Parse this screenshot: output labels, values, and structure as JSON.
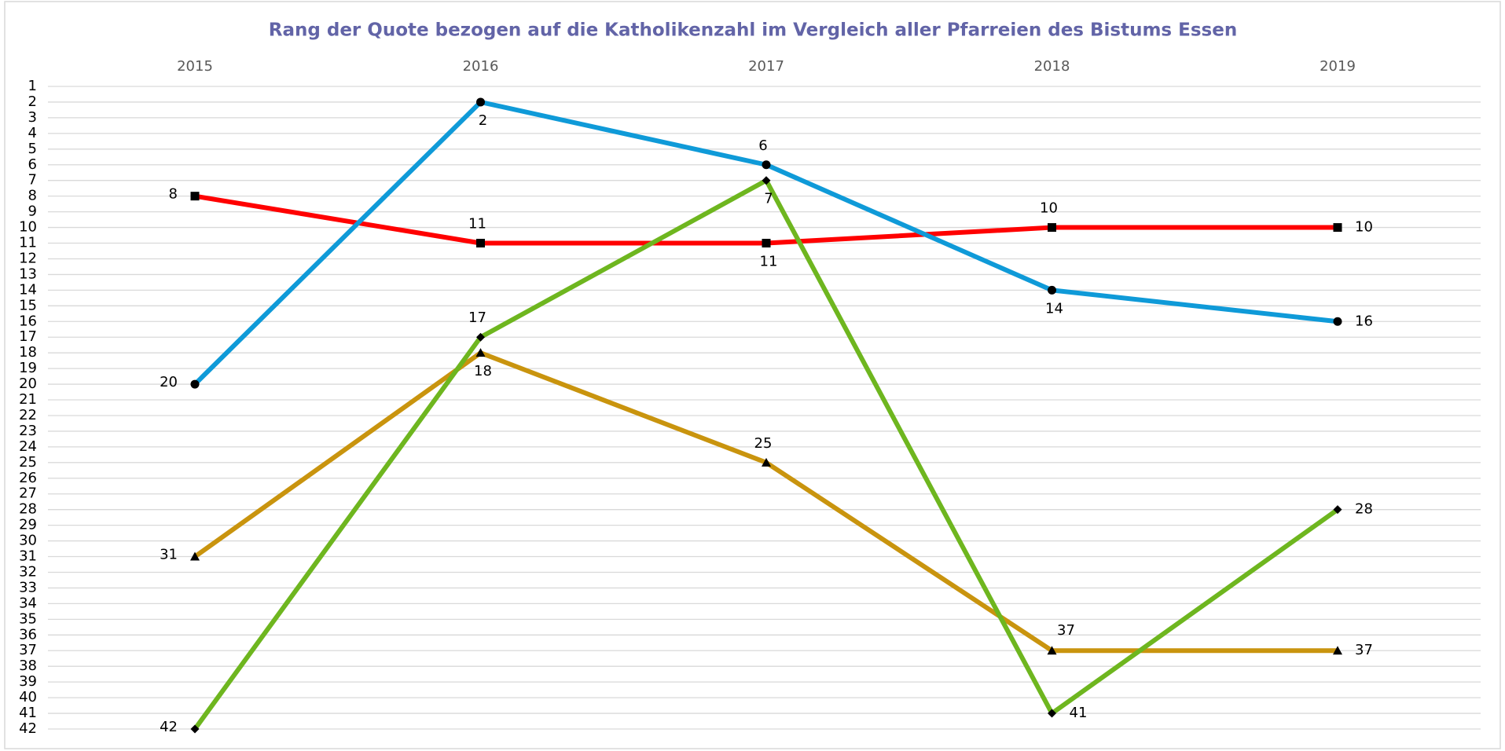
{
  "chart_data": {
    "type": "line",
    "title": "Rang der Quote bezogen auf die Katholikenzahl im Vergleich aller Pfarreien des Bistums Essen",
    "categories": [
      "2015",
      "2016",
      "2017",
      "2018",
      "2019"
    ],
    "series": [
      {
        "color": "#ff0000",
        "marker": "square",
        "values": [
          8,
          11,
          11,
          10,
          10
        ]
      },
      {
        "color": "#0f9ad8",
        "marker": "circle",
        "values": [
          20,
          2,
          6,
          14,
          16
        ]
      },
      {
        "color": "#c9940e",
        "marker": "triangle",
        "values": [
          31,
          18,
          25,
          37,
          37
        ]
      },
      {
        "color": "#6eb61f",
        "marker": "diamond",
        "values": [
          42,
          17,
          7,
          41,
          28
        ]
      }
    ],
    "ylim": [
      1,
      42
    ],
    "y_inverted": true,
    "yticks": [
      1,
      2,
      3,
      4,
      5,
      6,
      7,
      8,
      9,
      10,
      11,
      12,
      13,
      14,
      15,
      16,
      17,
      18,
      19,
      20,
      21,
      22,
      23,
      24,
      25,
      26,
      27,
      28,
      29,
      30,
      31,
      32,
      33,
      34,
      35,
      36,
      37,
      38,
      39,
      40,
      41,
      42
    ],
    "grid": true,
    "data_labels": true
  }
}
